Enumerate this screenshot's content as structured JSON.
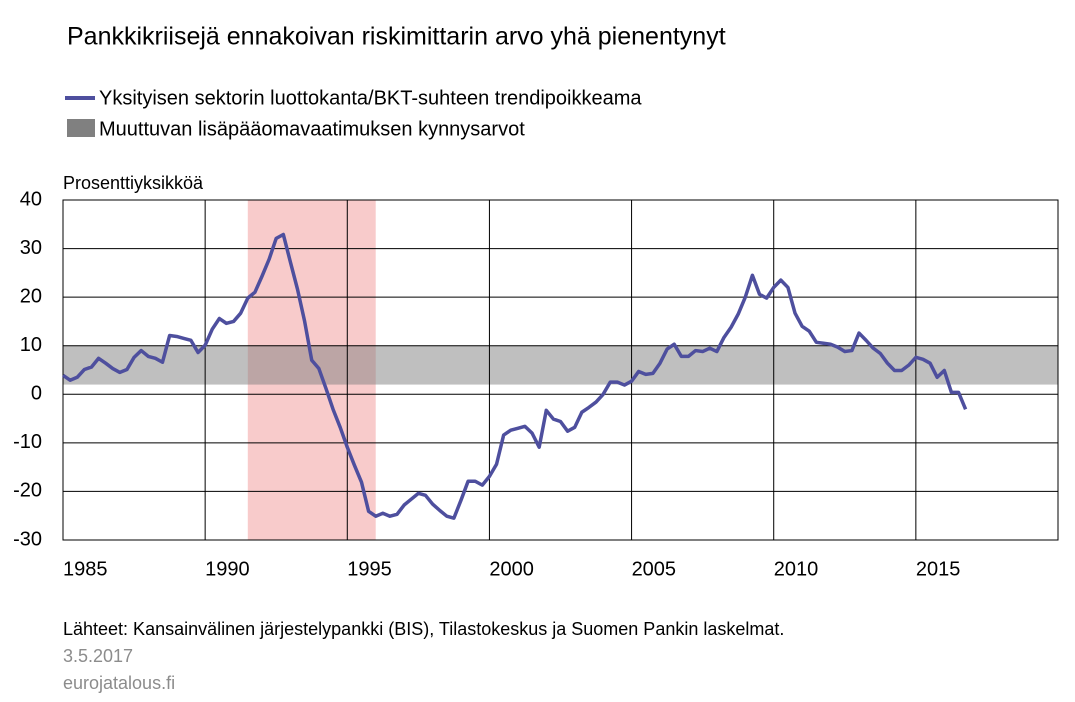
{
  "chart_data": {
    "type": "line",
    "title": "Pankkikriisejä ennakoivan riskimittarin arvo yhä pienentynyt",
    "y_label": "Prosenttiyksikköä",
    "x": [
      1985,
      1985.25,
      1985.5,
      1985.75,
      1986,
      1986.25,
      1986.5,
      1986.75,
      1987,
      1987.25,
      1987.5,
      1987.75,
      1988,
      1988.25,
      1988.5,
      1988.75,
      1989,
      1989.25,
      1989.5,
      1989.75,
      1990,
      1990.25,
      1990.5,
      1990.75,
      1991,
      1991.25,
      1991.5,
      1991.75,
      1992,
      1992.25,
      1992.5,
      1992.75,
      1993,
      1993.25,
      1993.5,
      1993.75,
      1994,
      1994.25,
      1994.5,
      1994.75,
      1995,
      1995.25,
      1995.5,
      1995.75,
      1996,
      1996.25,
      1996.5,
      1996.75,
      1997,
      1997.25,
      1997.5,
      1997.75,
      1998,
      1998.25,
      1998.5,
      1998.75,
      1999,
      1999.25,
      1999.5,
      1999.75,
      2000,
      2000.25,
      2000.5,
      2000.75,
      2001,
      2001.25,
      2001.5,
      2001.75,
      2002,
      2002.25,
      2002.5,
      2002.75,
      2003,
      2003.25,
      2003.5,
      2003.75,
      2004,
      2004.25,
      2004.5,
      2004.75,
      2005,
      2005.25,
      2005.5,
      2005.75,
      2006,
      2006.25,
      2006.5,
      2006.75,
      2007,
      2007.25,
      2007.5,
      2007.75,
      2008,
      2008.25,
      2008.5,
      2008.75,
      2009,
      2009.25,
      2009.5,
      2009.75,
      2010,
      2010.25,
      2010.5,
      2010.75,
      2011,
      2011.25,
      2011.5,
      2011.75,
      2012,
      2012.25,
      2012.5,
      2012.75,
      2013,
      2013.25,
      2013.5,
      2013.75,
      2014,
      2014.25,
      2014.5,
      2014.75,
      2015,
      2015.25,
      2015.5,
      2015.75,
      2016,
      2016.25,
      2016.5,
      2016.75
    ],
    "series": [
      {
        "name": "Yksityisen sektorin luottokanta/BKT-suhteen trendipoikkeama",
        "color": "#4e4f9e",
        "values": [
          3.9,
          2.9,
          3.5,
          5.1,
          5.6,
          7.4,
          6.4,
          5.3,
          4.5,
          5.1,
          7.6,
          9,
          7.8,
          7.4,
          6.6,
          12.1,
          11.9,
          11.5,
          11.1,
          8.6,
          10.1,
          13.4,
          15.6,
          14.6,
          15,
          16.7,
          19.8,
          21,
          24.3,
          27.8,
          32.1,
          32.9,
          27.2,
          21.6,
          15,
          7,
          5.3,
          1.2,
          -3.1,
          -6.8,
          -10.9,
          -14.6,
          -18.1,
          -24.1,
          -25.1,
          -24.5,
          -25.1,
          -24.7,
          -22.8,
          -21.6,
          -20.4,
          -20.8,
          -22.6,
          -23.9,
          -25.1,
          -25.5,
          -21.8,
          -17.9,
          -17.9,
          -18.7,
          -16.9,
          -14.4,
          -8.4,
          -7.4,
          -7,
          -6.6,
          -8,
          -10.9,
          -3.3,
          -5.1,
          -5.6,
          -7.6,
          -6.8,
          -3.7,
          -2.7,
          -1.6,
          0,
          2.5,
          2.5,
          1.9,
          2.7,
          4.7,
          4.1,
          4.3,
          6.4,
          9.3,
          10.3,
          7.8,
          7.8,
          9,
          8.8,
          9.5,
          8.8,
          11.7,
          13.8,
          16.5,
          20,
          24.5,
          20.6,
          19.8,
          22,
          23.5,
          22,
          16.7,
          14,
          13,
          10.7,
          10.5,
          10.3,
          9.7,
          8.8,
          9,
          12.6,
          11.1,
          9.5,
          8.4,
          6.4,
          4.9,
          4.9,
          6,
          7.6,
          7.2,
          6.4,
          3.5,
          4.9,
          0.4,
          0.4,
          -3.1
        ]
      }
    ],
    "bands": [
      {
        "name": "Muuttuvan lisäpääomavaatimuksen kynnysarvot",
        "color": "#808080",
        "range": [
          2,
          10
        ]
      }
    ],
    "highlight": {
      "color": "#f08c8c",
      "xrange": [
        1991.5,
        1996
      ]
    },
    "xlim": [
      1985,
      2020
    ],
    "ylim": [
      -30,
      40
    ],
    "xticks": [
      1985,
      1990,
      1995,
      2000,
      2005,
      2010,
      2015
    ],
    "yticks": [
      -30,
      -20,
      -10,
      0,
      10,
      20,
      30,
      40
    ],
    "grid": true,
    "source": "Lähteet: Kansainvälinen järjestelypankki (BIS), Tilastokeskus ja Suomen Pankin laskelmat.",
    "date": "3.5.2017",
    "website": "eurojatalous.fi"
  }
}
